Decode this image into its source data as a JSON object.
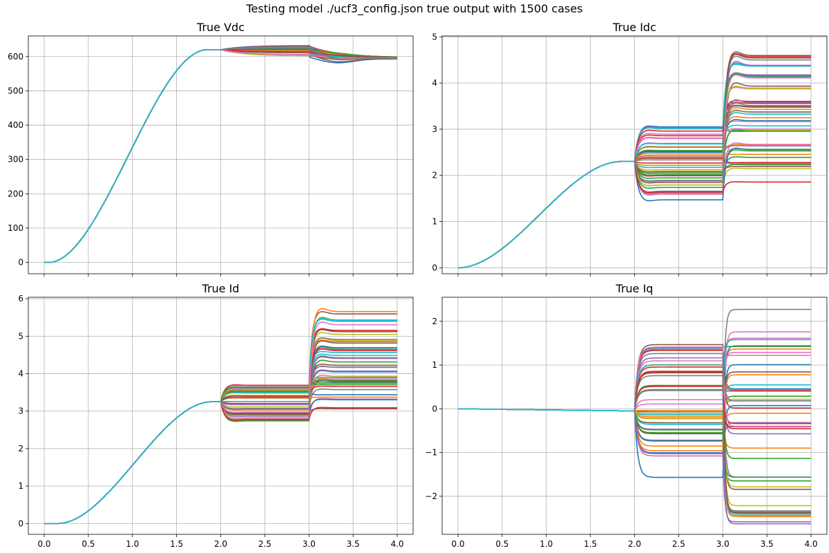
{
  "figure": {
    "suptitle": "Testing model ./ucf3_config.json true output with 1500 cases"
  },
  "palette": [
    "#1f77b4",
    "#ff7f0e",
    "#2ca02c",
    "#d62728",
    "#9467bd",
    "#8c564b",
    "#e377c2",
    "#7f7f7f",
    "#bcbd22",
    "#17becf"
  ],
  "chart_data": [
    {
      "id": "vdc",
      "type": "line",
      "title": "True Vdc",
      "xlim": [
        -0.18,
        4.18
      ],
      "ylim": [
        -33,
        660
      ],
      "xticks": [
        0.0,
        0.5,
        1.0,
        1.5,
        2.0,
        2.5,
        3.0,
        3.5,
        4.0
      ],
      "xtick_labels_visible": false,
      "yticks": [
        0,
        100,
        200,
        300,
        400,
        500,
        600
      ],
      "grid": true,
      "series_model": {
        "t_start": 0.0,
        "t_end": 4.0,
        "ramp_start": 0.05,
        "ramp_end": 1.85,
        "plateau": 620,
        "stage1_start": 2.0,
        "stage1_offsets": [
          -18,
          12
        ],
        "stage2_start": 3.0,
        "stage2_offsets": [
          -25,
          8
        ],
        "final_value": 595
      }
    },
    {
      "id": "idc",
      "type": "line",
      "title": "True Idc",
      "xlim": [
        -0.18,
        4.18
      ],
      "ylim": [
        -0.13,
        5.02
      ],
      "xticks": [
        0.0,
        0.5,
        1.0,
        1.5,
        2.0,
        2.5,
        3.0,
        3.5,
        4.0
      ],
      "xtick_labels_visible": false,
      "yticks": [
        0,
        1,
        2,
        3,
        4,
        5
      ],
      "grid": true,
      "series_model": {
        "t_start": 0.0,
        "t_end": 4.0,
        "ramp_start": 0.0,
        "ramp_end": 1.85,
        "plateau": 2.3,
        "stage1_start": 2.0,
        "stage1_range": [
          1.45,
          3.05
        ],
        "stage2_start": 3.0,
        "stage2_range": [
          1.45,
          4.8
        ]
      }
    },
    {
      "id": "id",
      "type": "line",
      "title": "True Id",
      "xlim": [
        -0.18,
        4.18
      ],
      "ylim": [
        -0.29,
        6.04
      ],
      "xticks": [
        0.0,
        0.5,
        1.0,
        1.5,
        2.0,
        2.5,
        3.0,
        3.5,
        4.0
      ],
      "xtick_labels": [
        "0.0",
        "0.5",
        "1.0",
        "1.5",
        "2.0",
        "2.5",
        "3.0",
        "3.5",
        "4.0"
      ],
      "yticks": [
        0,
        1,
        2,
        3,
        4,
        5,
        6
      ],
      "grid": true,
      "series_model": {
        "t_start": 0.0,
        "t_end": 4.0,
        "ramp_start": 0.15,
        "ramp_end": 1.9,
        "plateau": 3.25,
        "stage1_start": 2.0,
        "stage1_range": [
          2.6,
          3.7
        ],
        "stage2_start": 3.0,
        "stage2_range": [
          2.6,
          5.75
        ]
      }
    },
    {
      "id": "iq",
      "type": "line",
      "title": "True Iq",
      "xlim": [
        -0.18,
        4.18
      ],
      "ylim": [
        -2.87,
        2.55
      ],
      "xticks": [
        0.0,
        0.5,
        1.0,
        1.5,
        2.0,
        2.5,
        3.0,
        3.5,
        4.0
      ],
      "xtick_labels": [
        "0.0",
        "0.5",
        "1.0",
        "1.5",
        "2.0",
        "2.5",
        "3.0",
        "3.5",
        "4.0"
      ],
      "yticks": [
        -2,
        -1,
        0,
        1,
        2
      ],
      "grid": true,
      "series_model": {
        "t_start": 0.0,
        "t_end": 4.0,
        "drift_end": -0.05,
        "stage1_start": 2.0,
        "stage1_range": [
          -1.65,
          1.55
        ],
        "stage2_start": 3.0,
        "stage2_range": [
          -2.65,
          2.3
        ]
      }
    }
  ]
}
